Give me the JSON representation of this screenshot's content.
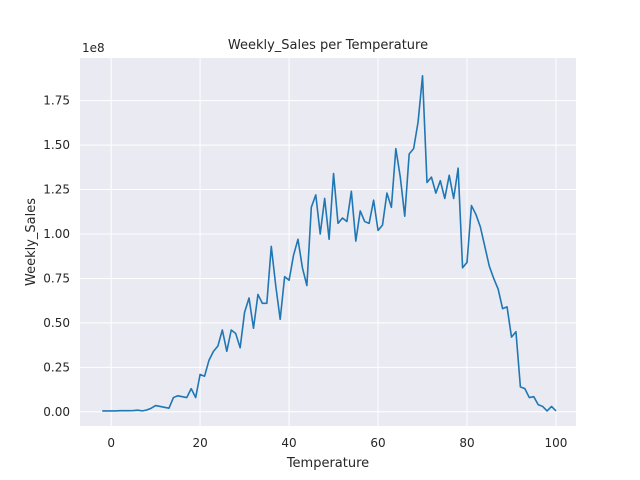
{
  "chart_data": {
    "type": "line",
    "title": "Weekly_Sales per Temperature",
    "xlabel": "Temperature",
    "ylabel": "Weekly_Sales",
    "y_offset_text": "1e8",
    "xlim": [
      -7,
      104.5
    ],
    "ylim": [
      -0.08,
      1.99
    ],
    "y_scale_note": "values in units of 1e8",
    "grid": true,
    "x_ticks": [
      0,
      20,
      40,
      60,
      80,
      100
    ],
    "x_tick_labels": [
      "0",
      "20",
      "40",
      "60",
      "80",
      "100"
    ],
    "y_ticks": [
      0.0,
      0.25,
      0.5,
      0.75,
      1.0,
      1.25,
      1.5,
      1.75
    ],
    "y_tick_labels": [
      "0.00",
      "0.25",
      "0.50",
      "0.75",
      "1.00",
      "1.25",
      "1.50",
      "1.75"
    ],
    "series": [
      {
        "color": "#1f77b4",
        "x": [
          -2,
          -1,
          0,
          1,
          2,
          3,
          4,
          5,
          6,
          7,
          8,
          9,
          10,
          11,
          12,
          13,
          14,
          15,
          16,
          17,
          18,
          19,
          20,
          21,
          22,
          23,
          24,
          25,
          26,
          27,
          28,
          29,
          30,
          31,
          32,
          33,
          34,
          35,
          36,
          37,
          38,
          39,
          40,
          41,
          42,
          43,
          44,
          45,
          46,
          47,
          48,
          49,
          50,
          51,
          52,
          53,
          54,
          55,
          56,
          57,
          58,
          59,
          60,
          61,
          62,
          63,
          64,
          65,
          66,
          67,
          68,
          69,
          70,
          71,
          72,
          73,
          74,
          75,
          76,
          77,
          78,
          79,
          80,
          81,
          82,
          83,
          84,
          85,
          86,
          87,
          88,
          89,
          90,
          91,
          92,
          93,
          94,
          95,
          96,
          97,
          98,
          99,
          100
        ],
        "y": [
          0.005,
          0.005,
          0.005,
          0.005,
          0.006,
          0.006,
          0.006,
          0.007,
          0.009,
          0.005,
          0.01,
          0.02,
          0.035,
          0.03,
          0.025,
          0.02,
          0.08,
          0.09,
          0.085,
          0.08,
          0.13,
          0.08,
          0.21,
          0.2,
          0.29,
          0.34,
          0.37,
          0.46,
          0.34,
          0.46,
          0.44,
          0.36,
          0.56,
          0.64,
          0.47,
          0.66,
          0.61,
          0.61,
          0.93,
          0.71,
          0.52,
          0.76,
          0.74,
          0.88,
          0.97,
          0.81,
          0.71,
          1.15,
          1.22,
          1.0,
          1.2,
          0.97,
          1.34,
          1.06,
          1.09,
          1.07,
          1.24,
          0.96,
          1.13,
          1.07,
          1.06,
          1.19,
          1.02,
          1.05,
          1.23,
          1.15,
          1.48,
          1.32,
          1.1,
          1.45,
          1.48,
          1.63,
          1.89,
          1.29,
          1.32,
          1.23,
          1.3,
          1.2,
          1.33,
          1.2,
          1.37,
          0.81,
          0.84,
          1.16,
          1.11,
          1.04,
          0.93,
          0.82,
          0.75,
          0.69,
          0.58,
          0.59,
          0.42,
          0.45,
          0.14,
          0.13,
          0.08,
          0.085,
          0.04,
          0.03,
          0.005,
          0.03,
          0.005
        ]
      }
    ]
  }
}
